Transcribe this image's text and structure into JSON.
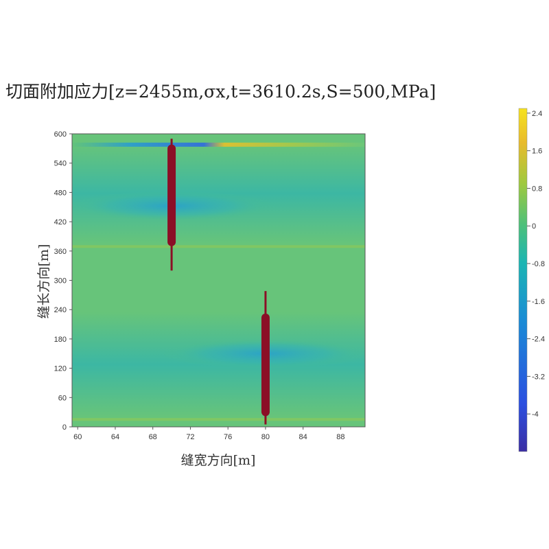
{
  "chart_data": {
    "type": "heatmap",
    "title": "切面附加应力[z=2455m,σx,t=3610.2s,S=500,MPa]",
    "xlabel": "缝宽方向[m]",
    "ylabel": "缝长方向[m]",
    "xlim": [
      59.4,
      90.6
    ],
    "ylim": [
      0,
      600
    ],
    "x_ticks": [
      "60",
      "64",
      "68",
      "72",
      "76",
      "80",
      "84",
      "88"
    ],
    "y_ticks": [
      "0",
      "60",
      "120",
      "180",
      "240",
      "300",
      "360",
      "420",
      "480",
      "540",
      "600"
    ],
    "colorbar": {
      "range": [
        -4.8,
        2.5
      ],
      "tick_labels": [
        "2.4",
        "1.6",
        "0.8",
        "0",
        "-0.8",
        "-1.6",
        "-2.4",
        "-3.2",
        "-4"
      ],
      "colors": [
        "#3b2ea3",
        "#2b4fe0",
        "#1a8bd6",
        "#1bb5b3",
        "#4cc07a",
        "#9ec93f",
        "#e8bb2c",
        "#f6e21f"
      ]
    },
    "fractures": [
      {
        "x": 70,
        "y_min": 320,
        "y_max": 590,
        "body_min": 370,
        "body_max": 578
      },
      {
        "x": 80,
        "y_min": 5,
        "y_max": 278,
        "body_min": 22,
        "body_max": 232
      }
    ],
    "fracture_color": "#8b0f26"
  }
}
